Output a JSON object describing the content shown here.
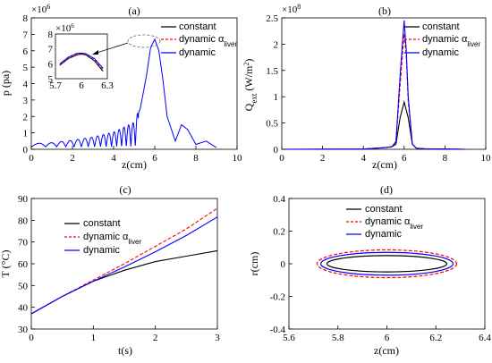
{
  "colors": {
    "constant": "#000000",
    "dynamic_alpha": "#ff0000",
    "dynamic": "#0000ff",
    "axis": "#000000"
  },
  "chart_data": [
    {
      "id": "a",
      "type": "line",
      "panel_label": "(a)",
      "xlabel": "z(cm)",
      "ylabel": "p (pa)",
      "y_exponent": "× 10^6",
      "xlim": [
        0,
        10
      ],
      "ylim": [
        0,
        8
      ],
      "xticks": [
        "0",
        "2",
        "4",
        "6",
        "8",
        "10"
      ],
      "yticks": [
        "0",
        "1",
        "2",
        "3",
        "4",
        "5",
        "6",
        "7",
        "8"
      ],
      "legend": {
        "location": "top-right",
        "entries": [
          "constant",
          "dynamic αliver",
          "dynamic"
        ]
      },
      "series": [
        {
          "name": "constant",
          "style": "solid",
          "note": "hidden under the dynamic curve"
        },
        {
          "name": "dynamic αliver",
          "style": "dashed",
          "note": "hidden under the dynamic curve"
        },
        {
          "name": "dynamic",
          "style": "solid",
          "x": [
            0,
            1.0,
            2.0,
            3.0,
            4.0,
            4.5,
            5.0,
            5.3,
            5.6,
            5.8,
            6.0,
            6.2,
            6.4,
            6.6,
            7.0,
            7.3,
            7.6,
            8.0,
            8.5,
            9.0
          ],
          "y": [
            0.2,
            0.25,
            0.4,
            0.6,
            0.9,
            1.2,
            1.5,
            2.5,
            4.5,
            6.2,
            6.7,
            6.0,
            4.2,
            2.0,
            0.5,
            1.5,
            1.2,
            0.3,
            0.5,
            0.1
          ]
        }
      ],
      "inset": {
        "xlim": [
          5.7,
          6.3
        ],
        "ylim": [
          5,
          8
        ],
        "xticks": [
          "5.7",
          "6",
          "6.3"
        ],
        "yticks": [
          "5",
          "6",
          "7",
          "8"
        ],
        "y_exponent": "× 10^6",
        "series": [
          {
            "name": "constant",
            "x": [
              5.75,
              5.85,
              5.95,
              6.0,
              6.05,
              6.15,
              6.25
            ],
            "y": [
              5.9,
              6.35,
              6.6,
              6.65,
              6.6,
              6.2,
              5.5
            ]
          },
          {
            "name": "dynamic αliver",
            "x": [
              5.75,
              5.85,
              5.95,
              6.0,
              6.05,
              6.15,
              6.25
            ],
            "y": [
              5.95,
              6.4,
              6.65,
              6.7,
              6.65,
              6.3,
              5.6
            ]
          },
          {
            "name": "dynamic",
            "x": [
              5.75,
              5.85,
              5.95,
              6.0,
              6.05,
              6.15,
              6.25
            ],
            "y": [
              6.0,
              6.45,
              6.7,
              6.72,
              6.68,
              6.35,
              5.7
            ]
          }
        ]
      }
    },
    {
      "id": "b",
      "type": "line",
      "panel_label": "(b)",
      "xlabel": "z(cm)",
      "ylabel": "Qext (W/m2)",
      "y_exponent": "× 10^8",
      "xlim": [
        0,
        10
      ],
      "ylim": [
        0,
        2.5
      ],
      "xticks": [
        "0",
        "2",
        "4",
        "6",
        "8",
        "10"
      ],
      "yticks": [
        "0",
        "0.5",
        "1",
        "1.5",
        "2",
        "2.5"
      ],
      "legend": {
        "location": "top-right",
        "entries": [
          "constant",
          "dynamic αliver",
          "dynamic"
        ]
      },
      "series": [
        {
          "name": "constant",
          "x": [
            0,
            4.0,
            5.0,
            5.4,
            5.6,
            5.8,
            6.0,
            6.2,
            6.4,
            6.6,
            7.0,
            9.0
          ],
          "y": [
            0,
            0.005,
            0.03,
            0.05,
            0.1,
            0.6,
            0.9,
            0.6,
            0.1,
            0.02,
            0.01,
            0
          ]
        },
        {
          "name": "dynamic αliver",
          "x": [
            0,
            4.0,
            5.0,
            5.4,
            5.6,
            5.8,
            6.0,
            6.1,
            6.2,
            6.4,
            6.6,
            7.0,
            9.0
          ],
          "y": [
            0,
            0.005,
            0.03,
            0.05,
            0.15,
            1.2,
            2.2,
            1.8,
            0.9,
            0.1,
            0.02,
            0.01,
            0
          ]
        },
        {
          "name": "dynamic",
          "x": [
            0,
            4.0,
            5.0,
            5.4,
            5.6,
            5.8,
            6.0,
            6.1,
            6.2,
            6.4,
            6.6,
            7.0,
            9.0
          ],
          "y": [
            0,
            0.005,
            0.03,
            0.05,
            0.15,
            1.4,
            2.45,
            1.9,
            1.0,
            0.1,
            0.02,
            0.01,
            0
          ]
        }
      ]
    },
    {
      "id": "c",
      "type": "line",
      "panel_label": "(c)",
      "xlabel": "t(s)",
      "ylabel": "T (°C)",
      "xlim": [
        0,
        3
      ],
      "ylim": [
        30,
        90
      ],
      "xticks": [
        "0",
        "1",
        "2",
        "3"
      ],
      "yticks": [
        "30",
        "40",
        "50",
        "60",
        "70",
        "80",
        "90"
      ],
      "legend": {
        "location": "left",
        "entries": [
          "constant",
          "dynamic αliver",
          "dynamic"
        ]
      },
      "series": [
        {
          "name": "constant",
          "x": [
            0,
            0.5,
            1.0,
            1.5,
            2.0,
            2.5,
            3.0
          ],
          "y": [
            37,
            45,
            52,
            57,
            61,
            63.5,
            66
          ]
        },
        {
          "name": "dynamic αliver",
          "x": [
            0,
            0.5,
            1.0,
            1.5,
            2.0,
            2.5,
            3.0
          ],
          "y": [
            37,
            45,
            52.5,
            60,
            68,
            76,
            85.5
          ]
        },
        {
          "name": "dynamic",
          "x": [
            0,
            0.5,
            1.0,
            1.5,
            2.0,
            2.5,
            3.0
          ],
          "y": [
            37,
            45,
            52,
            58.5,
            65.5,
            73,
            81.5
          ]
        }
      ]
    },
    {
      "id": "d",
      "type": "line",
      "panel_label": "(d)",
      "xlabel": "z(cm)",
      "ylabel": "r(cm)",
      "xlim": [
        5.6,
        6.4
      ],
      "ylim": [
        -0.4,
        0.4
      ],
      "xticks": [
        "5.6",
        "5.8",
        "6",
        "6.2",
        "6.4"
      ],
      "yticks": [
        "-0.4",
        "-0.2",
        "0",
        "0.2",
        "0.4"
      ],
      "legend": {
        "location": "top",
        "entries": [
          "constant",
          "dynamic αliver",
          "dynamic"
        ]
      },
      "series": [
        {
          "name": "constant",
          "shape": "ellipse",
          "center": [
            6,
            0
          ],
          "semi_axes": [
            0.245,
            0.05
          ]
        },
        {
          "name": "dynamic αliver",
          "shape": "ellipse",
          "center": [
            6,
            0
          ],
          "semi_axes": [
            0.285,
            0.085
          ],
          "style": "dashed"
        },
        {
          "name": "dynamic",
          "shape": "ellipse",
          "center": [
            6,
            0
          ],
          "semi_axes": [
            0.27,
            0.07
          ]
        }
      ]
    }
  ]
}
